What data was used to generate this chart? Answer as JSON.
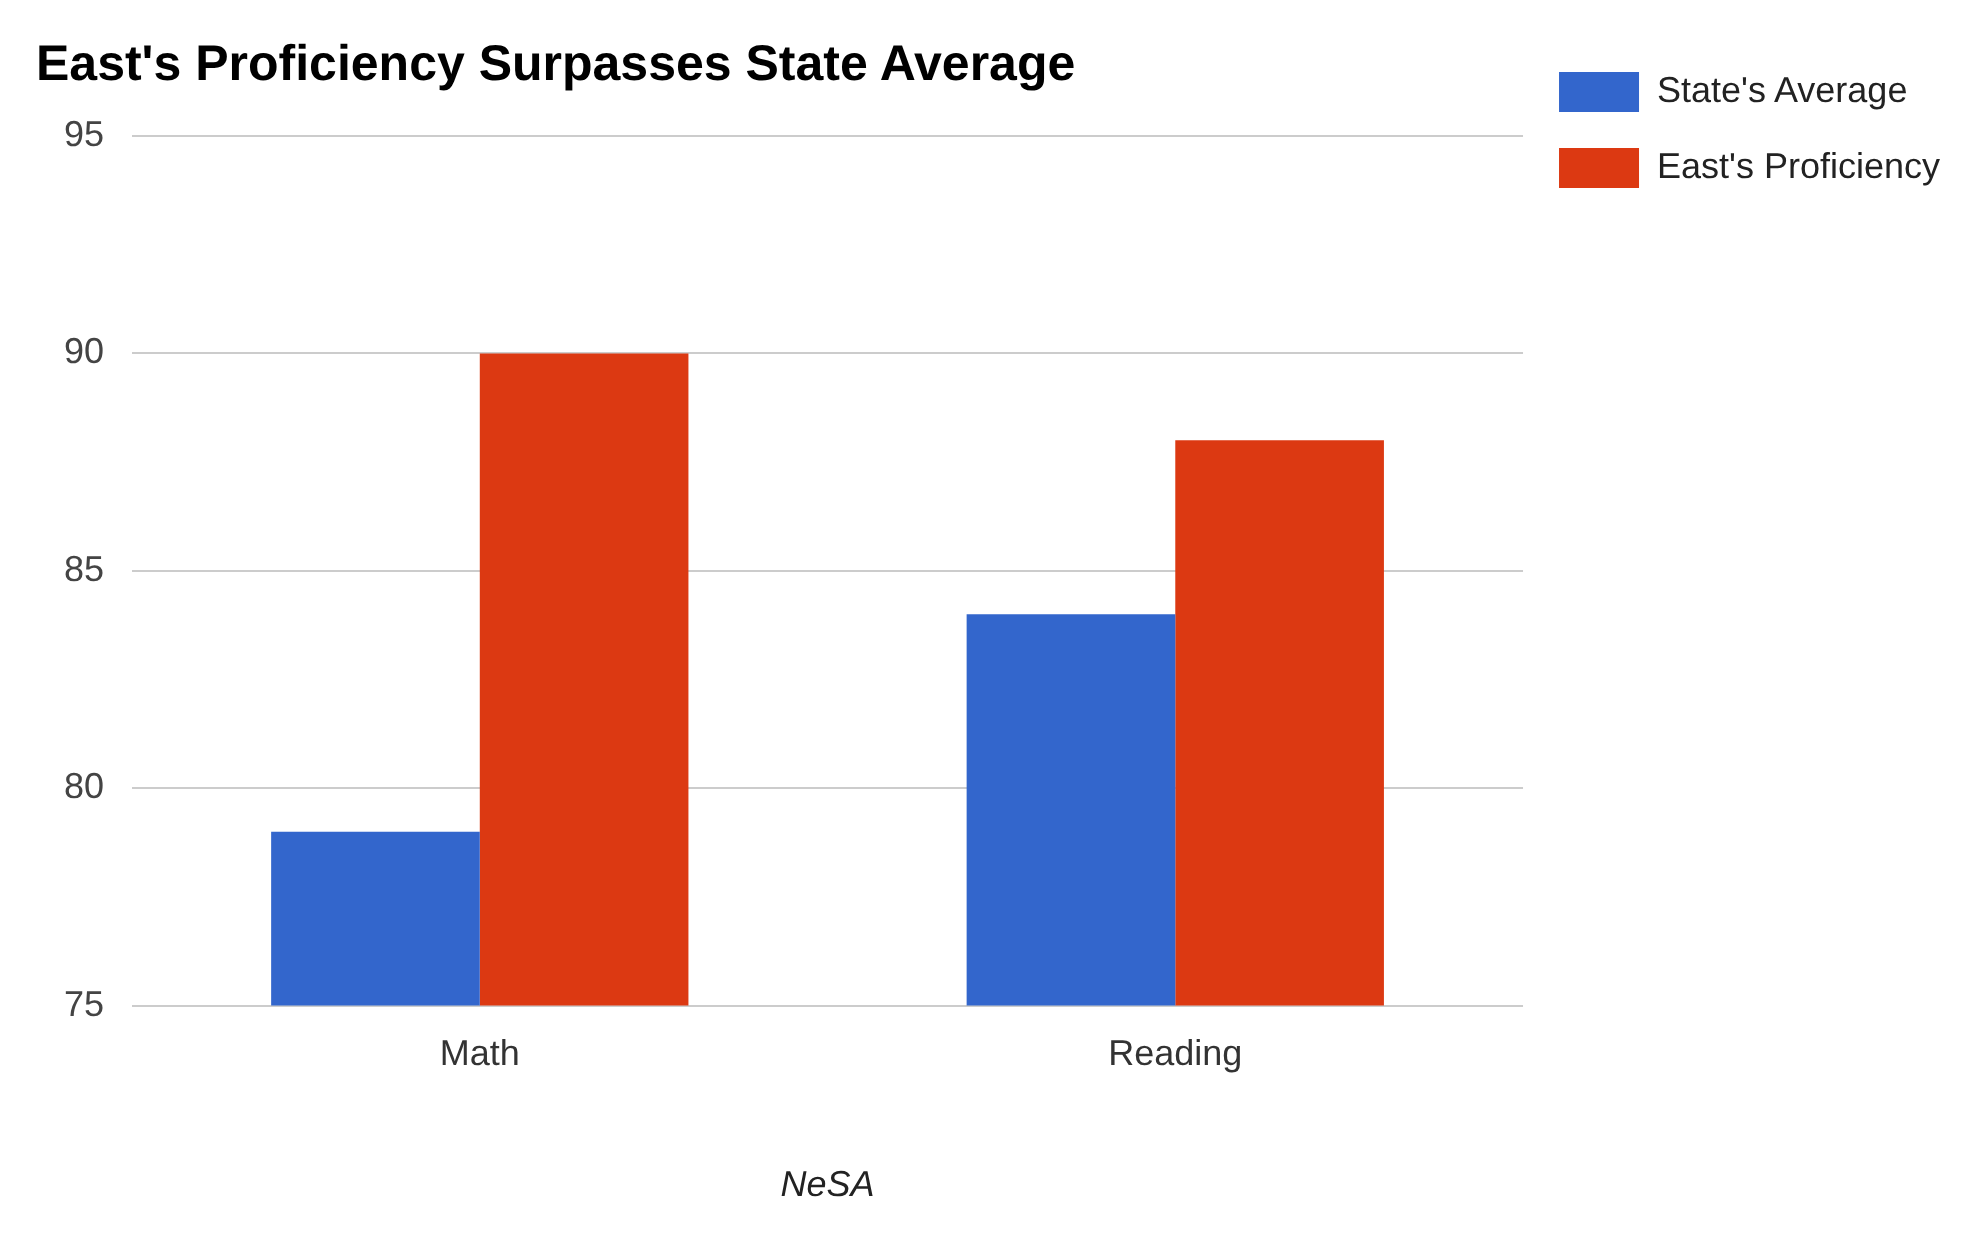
{
  "chart_data": {
    "type": "bar",
    "title": "East's Proficiency Surpasses State Average",
    "xlabel": "NeSA",
    "categories": [
      "Math",
      "Reading"
    ],
    "series": [
      {
        "name": "State's Average",
        "color": "#3366cc",
        "values": [
          79,
          84
        ]
      },
      {
        "name": "East's Proficiency",
        "color": "#dc3912",
        "values": [
          90,
          88
        ]
      }
    ],
    "ylim": [
      75,
      95
    ],
    "yticks": [
      75,
      80,
      85,
      90,
      95
    ],
    "grid": "y",
    "legend": "top right"
  }
}
